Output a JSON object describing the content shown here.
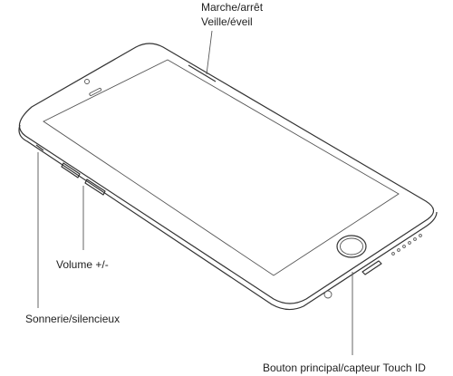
{
  "labels": {
    "power": "Marche/arrêt",
    "sleep": "Veille/éveil",
    "volume": "Volume +/-",
    "ring": "Sonnerie/silencieux",
    "home": "Bouton principal/capteur Touch ID"
  }
}
